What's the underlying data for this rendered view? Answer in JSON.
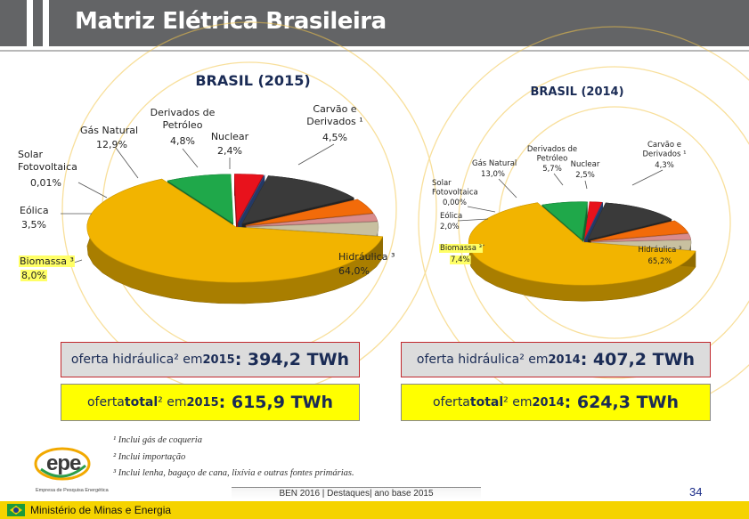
{
  "header": {
    "title": "Matriz Elétrica Brasileira"
  },
  "chart_data": [
    {
      "type": "pie",
      "title": "BRASIL (2015)",
      "categories": [
        "Hidráulica ³",
        "Biomassa ³",
        "Eólica",
        "Solar Fotovoltaica",
        "Gás Natural",
        "Derivados de Petróleo",
        "Nuclear",
        "Carvão e Derivados ¹"
      ],
      "values": [
        64.0,
        8.0,
        3.5,
        0.01,
        12.9,
        4.8,
        2.4,
        4.5
      ],
      "value_labels": [
        "64,0%",
        "8,0%",
        "3,5%",
        "0,01%",
        "12,9%",
        "4,8%",
        "2,4%",
        "4,5%"
      ],
      "colors": [
        "#f2b400",
        "#1fa84a",
        "#e8121c",
        "#3a5fa8",
        "#3a3a3a",
        "#f26b0a",
        "#d98c8c",
        "#c8c0a0"
      ]
    },
    {
      "type": "pie",
      "title": "BRASIL (2014)",
      "categories": [
        "Hidráulica ³",
        "Biomassa ³",
        "Eólica",
        "Solar Fotovoltaica",
        "Gás Natural",
        "Derivados de Petróleo",
        "Nuclear",
        "Carvão e Derivados ¹"
      ],
      "values": [
        65.2,
        7.4,
        2.0,
        0.0,
        13.0,
        5.7,
        2.5,
        4.3
      ],
      "value_labels": [
        "65,2%",
        "7,4%",
        "2,0%",
        "0,00%",
        "13,0%",
        "5,7%",
        "2,5%",
        "4,3%"
      ],
      "colors": [
        "#f2b400",
        "#1fa84a",
        "#e8121c",
        "#3a5fa8",
        "#3a3a3a",
        "#f26b0a",
        "#d98c8c",
        "#c8c0a0"
      ]
    }
  ],
  "boxes": {
    "h2015": {
      "pre": "oferta hidráulica² em ",
      "year": "2015",
      "value": ": 394,2 TWh"
    },
    "h2014": {
      "pre": "oferta hidráulica² em ",
      "year": "2014",
      "value": ": 407,2 TWh"
    },
    "t2015": {
      "pre": "oferta ",
      "bold": "total",
      "mid": "² em ",
      "year": "2015",
      "value": ": 615,9 TWh"
    },
    "t2014": {
      "pre": "oferta ",
      "bold": "total",
      "mid": "² em ",
      "year": "2014",
      "value": ": 624,3 TWh"
    }
  },
  "notes": [
    "¹ Inclui gás de coqueria",
    "² Inclui importação",
    "³ Inclui lenha, bagaço de cana, lixívia e outras fontes primárias."
  ],
  "footer": {
    "mid": "BEN 2016 | Destaques| ano base 2015",
    "page": "34",
    "ministry": "Ministério de Minas e Energia",
    "logo": "epe",
    "logo_sub": "Empresa de Pesquisa Energética"
  }
}
